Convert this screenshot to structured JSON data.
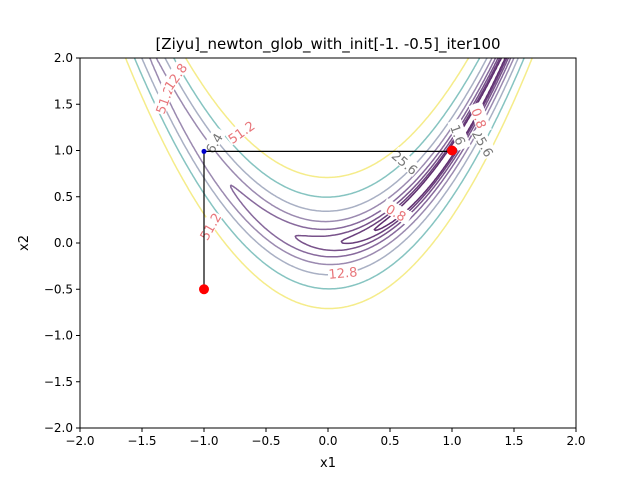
{
  "chart_data": {
    "type": "line",
    "title": "[Ziyu]_newton_glob_with_init[-1.  -0.5]_iter100",
    "xlabel": "x1",
    "ylabel": "x2",
    "xlim": [
      -2.0,
      2.0
    ],
    "ylim": [
      -2.0,
      2.0
    ],
    "xticks": [
      -2.0,
      -1.5,
      -1.0,
      -0.5,
      0.0,
      0.5,
      1.0,
      1.5,
      2.0
    ],
    "yticks": [
      -2.0,
      -1.5,
      -1.0,
      -0.5,
      0.0,
      0.5,
      1.0,
      1.5,
      2.0
    ],
    "xtick_labels": [
      "−2.0",
      "−1.5",
      "−1.0",
      "−0.5",
      "0.0",
      "0.5",
      "1.0",
      "1.5",
      "2.0"
    ],
    "ytick_labels": [
      "−2.0",
      "−1.5",
      "−1.0",
      "−0.5",
      "0.0",
      "0.5",
      "1.0",
      "1.5",
      "2.0"
    ],
    "grid": false,
    "contour_function": "rosenbrock",
    "contour_levels": [
      0.4,
      0.8,
      1.6,
      3.2,
      6.4,
      12.8,
      25.6,
      51.2
    ],
    "contour_colors": [
      "#5e2d6e",
      "#6a3f7c",
      "#78528a",
      "#87699c",
      "#9b8ab0",
      "#a9b0c4",
      "#86c4c1",
      "#f5ec8a"
    ],
    "contour_labels": [
      {
        "text": "51.2",
        "x": -1.32,
        "y": 1.55,
        "color": "#e8757a",
        "angle": 70
      },
      {
        "text": "12.8",
        "x": -1.23,
        "y": 1.8,
        "color": "#e8757a",
        "angle": 55
      },
      {
        "text": "51.2",
        "x": -0.7,
        "y": 1.2,
        "color": "#e8757a",
        "angle": 35
      },
      {
        "text": "6.4",
        "x": -0.92,
        "y": 1.08,
        "color": "#777777",
        "angle": 60
      },
      {
        "text": "51.2",
        "x": -0.95,
        "y": 0.18,
        "color": "#e8757a",
        "angle": 60
      },
      {
        "text": "25.6",
        "x": 0.62,
        "y": 0.87,
        "color": "#777777",
        "angle": -40
      },
      {
        "text": "25.6",
        "x": 1.25,
        "y": 1.08,
        "color": "#777777",
        "angle": -60
      },
      {
        "text": "12.8",
        "x": 0.12,
        "y": -0.32,
        "color": "#e8757a",
        "angle": 5
      },
      {
        "text": "0.8",
        "x": 0.55,
        "y": 0.33,
        "color": "#e8757a",
        "angle": -30
      },
      {
        "text": "1.6",
        "x": 1.05,
        "y": 1.17,
        "color": "#777777",
        "angle": -70
      },
      {
        "text": "0.8",
        "x": 1.22,
        "y": 1.35,
        "color": "#e8757a",
        "angle": -70
      }
    ],
    "series": [
      {
        "type": "path",
        "color": "#000000",
        "x": [
          -1.0,
          -1.0,
          1.0,
          1.0
        ],
        "y": [
          -0.5,
          0.99,
          0.99,
          1.0
        ]
      }
    ],
    "markers": [
      {
        "x": -1.0,
        "y": -0.5,
        "color": "#ff0000",
        "size": "large"
      },
      {
        "x": -1.0,
        "y": 0.99,
        "color": "#0000cc",
        "size": "small"
      },
      {
        "x": 1.0,
        "y": 1.0,
        "color": "#ff0000",
        "size": "large"
      }
    ]
  }
}
